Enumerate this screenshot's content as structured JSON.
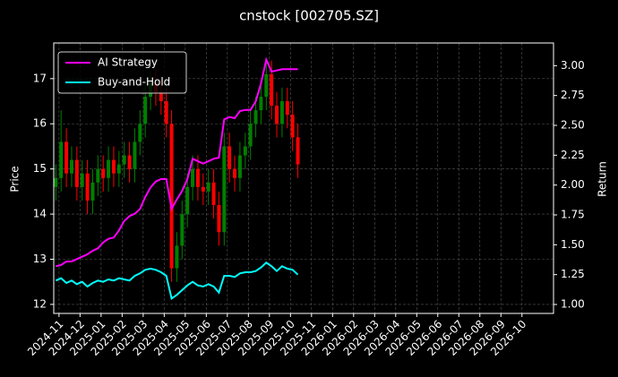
{
  "chart_data": {
    "type": "candlestick",
    "title": "cnstock [002705.SZ]",
    "ylabel": "Price",
    "y2label": "Return",
    "x": [
      -0.15,
      0.1,
      0.35,
      0.6,
      0.85,
      1.1,
      1.35,
      1.6,
      1.85,
      2.1,
      2.35,
      2.6,
      2.85,
      3.1,
      3.35,
      3.6,
      3.85,
      4.1,
      4.35,
      4.6,
      4.85,
      5.1,
      5.35,
      5.6,
      5.85,
      6.1,
      6.35,
      6.6,
      6.85,
      7.1,
      7.35,
      7.6,
      7.85,
      8.1,
      8.35,
      8.6,
      8.85,
      9.1,
      9.35,
      9.6,
      9.85,
      10.1,
      10.35,
      10.6,
      10.85,
      11.1,
      11.35
    ],
    "open": [
      14.6,
      14.8,
      15.6,
      14.9,
      15.2,
      14.6,
      14.9,
      14.3,
      14.7,
      15.0,
      14.8,
      15.2,
      14.9,
      15.1,
      15.3,
      15.0,
      15.6,
      16.0,
      16.6,
      16.9,
      16.7,
      16.5,
      16.0,
      12.8,
      13.3,
      14.0,
      14.6,
      15.0,
      14.6,
      14.5,
      14.7,
      14.2,
      13.6,
      15.5,
      15.0,
      14.8,
      15.3,
      15.5,
      16.0,
      16.3,
      16.6,
      17.1,
      16.4,
      16.0,
      16.5,
      16.2,
      15.7
    ],
    "high": [
      15.1,
      16.3,
      15.9,
      15.5,
      15.5,
      15.2,
      15.2,
      15.0,
      15.3,
      15.3,
      15.5,
      15.5,
      15.4,
      15.6,
      15.6,
      15.9,
      16.3,
      16.9,
      17.2,
      17.2,
      17.0,
      16.8,
      16.3,
      13.6,
      14.3,
      14.9,
      15.3,
      15.3,
      14.9,
      15.0,
      15.0,
      14.5,
      15.8,
      15.8,
      15.3,
      15.6,
      15.8,
      16.3,
      16.6,
      16.9,
      17.4,
      17.4,
      16.7,
      16.8,
      16.8,
      16.5,
      16.0
    ],
    "low": [
      14.3,
      14.5,
      14.6,
      14.6,
      14.3,
      14.3,
      14.0,
      14.0,
      14.4,
      14.5,
      14.5,
      14.6,
      14.6,
      14.8,
      14.7,
      14.7,
      15.3,
      15.7,
      16.3,
      16.4,
      16.2,
      15.7,
      12.5,
      12.5,
      13.0,
      13.7,
      14.3,
      14.3,
      14.2,
      14.2,
      13.9,
      13.3,
      13.3,
      14.7,
      14.5,
      14.5,
      15.0,
      15.2,
      15.7,
      16.0,
      16.3,
      16.1,
      15.7,
      15.7,
      15.9,
      15.4,
      14.8
    ],
    "close": [
      14.8,
      15.6,
      14.9,
      15.2,
      14.6,
      14.9,
      14.3,
      14.7,
      15.0,
      14.8,
      15.2,
      14.9,
      15.1,
      15.3,
      15.0,
      15.6,
      16.0,
      16.6,
      16.9,
      16.7,
      16.5,
      16.0,
      12.8,
      13.3,
      14.0,
      14.6,
      15.0,
      14.6,
      14.5,
      14.7,
      14.2,
      13.6,
      15.5,
      15.0,
      14.8,
      15.3,
      15.5,
      16.0,
      16.3,
      16.6,
      17.1,
      16.4,
      16.0,
      16.5,
      16.2,
      15.7,
      15.1
    ],
    "up_color": "#008000",
    "down_color": "#ff0000",
    "series": [
      {
        "name": "AI Strategy",
        "color": "#ff00ff",
        "axis": "y2",
        "values": [
          1.32,
          1.33,
          1.36,
          1.36,
          1.38,
          1.4,
          1.42,
          1.45,
          1.47,
          1.52,
          1.55,
          1.56,
          1.62,
          1.7,
          1.74,
          1.76,
          1.8,
          1.9,
          1.98,
          2.03,
          2.05,
          2.05,
          1.8,
          1.88,
          1.95,
          2.05,
          2.22,
          2.2,
          2.18,
          2.2,
          2.22,
          2.23,
          2.55,
          2.57,
          2.56,
          2.62,
          2.63,
          2.63,
          2.7,
          2.85,
          3.05,
          2.95,
          2.96,
          2.97,
          2.97,
          2.97,
          2.97
        ]
      },
      {
        "name": "Buy-and-Hold",
        "color": "#00ffff",
        "axis": "y2",
        "values": [
          1.2,
          1.22,
          1.18,
          1.2,
          1.17,
          1.19,
          1.15,
          1.18,
          1.2,
          1.19,
          1.21,
          1.2,
          1.22,
          1.21,
          1.2,
          1.24,
          1.26,
          1.29,
          1.3,
          1.29,
          1.27,
          1.24,
          1.05,
          1.08,
          1.12,
          1.16,
          1.19,
          1.16,
          1.15,
          1.17,
          1.15,
          1.1,
          1.24,
          1.24,
          1.23,
          1.26,
          1.27,
          1.27,
          1.28,
          1.31,
          1.35,
          1.32,
          1.28,
          1.32,
          1.3,
          1.29,
          1.25
        ]
      }
    ],
    "xlim": [
      -0.25,
      23.5
    ],
    "xticks": [
      {
        "value": 0,
        "label": "2024-11"
      },
      {
        "value": 1,
        "label": "2024-12"
      },
      {
        "value": 2,
        "label": "2025-01"
      },
      {
        "value": 3,
        "label": "2025-02"
      },
      {
        "value": 4,
        "label": "2025-03"
      },
      {
        "value": 5,
        "label": "2025-04"
      },
      {
        "value": 6,
        "label": "2025-05"
      },
      {
        "value": 7,
        "label": "2025-06"
      },
      {
        "value": 8,
        "label": "2025-07"
      },
      {
        "value": 9,
        "label": "2025-08"
      },
      {
        "value": 10,
        "label": "2025-09"
      },
      {
        "value": 11,
        "label": "2025-10"
      },
      {
        "value": 12,
        "label": "2025-11"
      },
      {
        "value": 13,
        "label": "2026-01"
      },
      {
        "value": 14,
        "label": "2026-02"
      },
      {
        "value": 15,
        "label": "2026-03"
      },
      {
        "value": 16,
        "label": "2026-04"
      },
      {
        "value": 17,
        "label": "2026-05"
      },
      {
        "value": 18,
        "label": "2026-06"
      },
      {
        "value": 19,
        "label": "2026-07"
      },
      {
        "value": 20,
        "label": "2026-08"
      },
      {
        "value": 21,
        "label": "2026-09"
      },
      {
        "value": 22,
        "label": "2026-10"
      }
    ],
    "ylim": [
      11.8,
      17.79
    ],
    "yticks": [
      12,
      13,
      14,
      15,
      16,
      17
    ],
    "y2lim": [
      0.925,
      3.19
    ],
    "y2ticks": [
      {
        "value": 1,
        "label": "1.00"
      },
      {
        "value": 1.25,
        "label": "1.25"
      },
      {
        "value": 1.5,
        "label": "1.50"
      },
      {
        "value": 1.75,
        "label": "1.75"
      },
      {
        "value": 2,
        "label": "2.00"
      },
      {
        "value": 2.25,
        "label": "2.25"
      },
      {
        "value": 2.5,
        "label": "2.50"
      },
      {
        "value": 2.75,
        "label": "2.75"
      },
      {
        "value": 3,
        "label": "3.00"
      }
    ],
    "grid": true,
    "legend": "upper left"
  }
}
